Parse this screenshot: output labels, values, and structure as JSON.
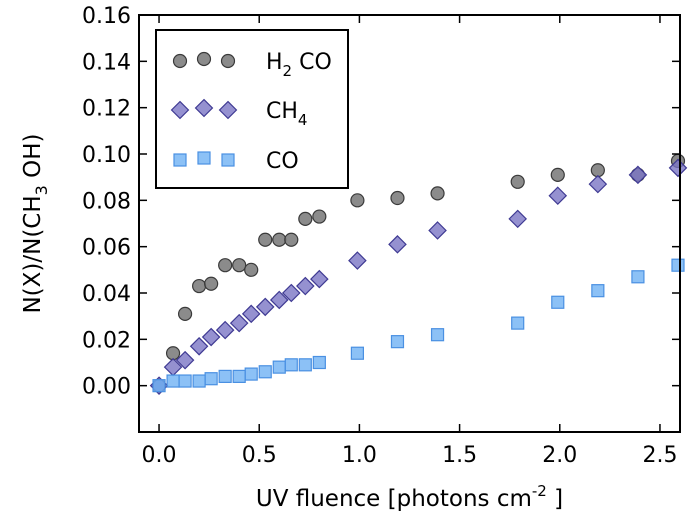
{
  "chart_data": {
    "type": "scatter",
    "xlabel": {
      "main": "UV fluence [photons cm",
      "sup": "-2",
      "tail": " ]"
    },
    "ylabel": {
      "pre": "N(X)/N(CH",
      "sub": "3",
      "post": " OH)"
    },
    "xlim": [
      -0.1,
      2.6
    ],
    "ylim": [
      -0.02,
      0.16
    ],
    "xticks": [
      0.0,
      0.5,
      1.0,
      1.5,
      2.0,
      2.5
    ],
    "xtick_labels": [
      "0.0",
      "0.5",
      "1.0",
      "1.5",
      "2.0",
      "2.5"
    ],
    "yticks": [
      0.0,
      0.02,
      0.04,
      0.06,
      0.08,
      0.1,
      0.12,
      0.14,
      0.16
    ],
    "ytick_labels": [
      "0.00",
      "0.02",
      "0.04",
      "0.06",
      "0.08",
      "0.10",
      "0.12",
      "0.14",
      "0.16"
    ],
    "grid": false,
    "legend_position": "top-left",
    "series": [
      {
        "name": "H2CO",
        "label": {
          "pre": "H",
          "sub": "2",
          "post": " CO"
        },
        "marker": "circle",
        "color": "#6e6e6e",
        "edge": "#3a3a3a",
        "x": [
          0.0,
          0.07,
          0.13,
          0.2,
          0.26,
          0.33,
          0.4,
          0.46,
          0.53,
          0.6,
          0.66,
          0.73,
          0.8,
          0.99,
          1.19,
          1.39,
          1.79,
          1.99,
          2.19,
          2.39,
          2.59
        ],
        "y": [
          0.0,
          0.014,
          0.031,
          0.043,
          0.044,
          0.052,
          0.052,
          0.05,
          0.063,
          0.063,
          0.063,
          0.072,
          0.073,
          0.08,
          0.081,
          0.083,
          0.088,
          0.091,
          0.093,
          0.091,
          0.097
        ]
      },
      {
        "name": "CH4",
        "label": {
          "pre": "CH",
          "sub": "4",
          "post": ""
        },
        "marker": "diamond",
        "color": "#7b75c4",
        "edge": "#3f3a93",
        "x": [
          0.0,
          0.07,
          0.13,
          0.2,
          0.26,
          0.33,
          0.4,
          0.46,
          0.53,
          0.6,
          0.66,
          0.73,
          0.8,
          0.99,
          1.19,
          1.39,
          1.79,
          1.99,
          2.19,
          2.39,
          2.59
        ],
        "y": [
          0.0,
          0.008,
          0.011,
          0.017,
          0.021,
          0.024,
          0.027,
          0.031,
          0.034,
          0.037,
          0.04,
          0.043,
          0.046,
          0.054,
          0.061,
          0.067,
          0.072,
          0.082,
          0.087,
          0.091,
          0.094
        ]
      },
      {
        "name": "CO",
        "label": {
          "pre": "CO",
          "sub": "",
          "post": ""
        },
        "marker": "square",
        "color": "#6fb1f4",
        "edge": "#4a90e2",
        "x": [
          0.0,
          0.07,
          0.13,
          0.2,
          0.26,
          0.33,
          0.4,
          0.46,
          0.53,
          0.6,
          0.66,
          0.73,
          0.8,
          0.99,
          1.19,
          1.39,
          1.79,
          1.99,
          2.19,
          2.39,
          2.59
        ],
        "y": [
          0.0,
          0.002,
          0.002,
          0.002,
          0.003,
          0.004,
          0.004,
          0.005,
          0.006,
          0.008,
          0.009,
          0.009,
          0.01,
          0.014,
          0.019,
          0.022,
          0.027,
          0.036,
          0.041,
          0.047,
          0.052
        ]
      }
    ]
  }
}
